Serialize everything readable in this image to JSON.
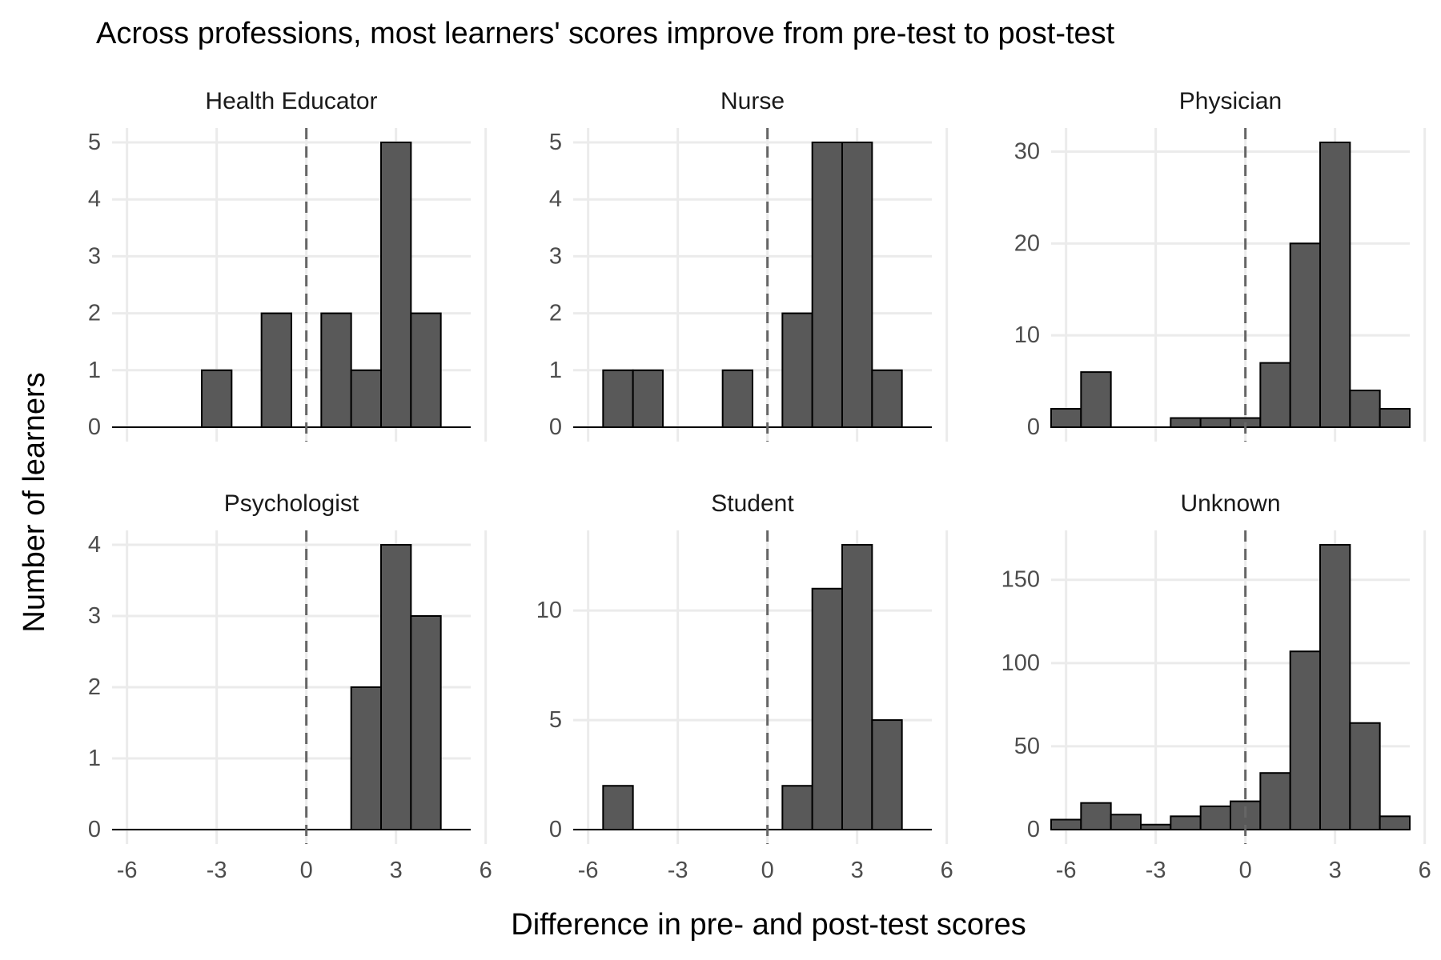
{
  "chart_data": {
    "type": "bar",
    "title": "Across professions, most learners' scores improve from pre-test to post-test",
    "xlabel": "Difference in pre- and post-test scores",
    "ylabel": "Number of learners",
    "xlim": [
      -6.5,
      5.5
    ],
    "bin_width": 1,
    "bin_centers": [
      -6,
      -5,
      -4,
      -3,
      -2,
      -1,
      0,
      1,
      2,
      3,
      4,
      5
    ],
    "x_ticks": [
      -6,
      -3,
      0,
      3,
      6
    ],
    "x_tick_labels": [
      "-6",
      "-3",
      "0",
      "3",
      "6"
    ],
    "reference_line": {
      "x": 0,
      "style": "dashed"
    },
    "grid": true,
    "legend": "none",
    "facets": [
      {
        "name": "Health Educator",
        "values": [
          0,
          0,
          0,
          1,
          0,
          2,
          0,
          2,
          1,
          5,
          2,
          0
        ],
        "ylim": [
          0,
          5
        ],
        "y_ticks": [
          0,
          1,
          2,
          3,
          4,
          5
        ],
        "y_tick_labels": [
          "0",
          "1",
          "2",
          "3",
          "4",
          "5"
        ]
      },
      {
        "name": "Nurse",
        "values": [
          0,
          1,
          1,
          0,
          0,
          1,
          0,
          2,
          5,
          5,
          1,
          0
        ],
        "ylim": [
          0,
          5
        ],
        "y_ticks": [
          0,
          1,
          2,
          3,
          4,
          5
        ],
        "y_tick_labels": [
          "0",
          "1",
          "2",
          "3",
          "4",
          "5"
        ]
      },
      {
        "name": "Physician",
        "values": [
          2,
          6,
          0,
          0,
          1,
          1,
          1,
          7,
          20,
          31,
          4,
          2
        ],
        "ylim": [
          0,
          31
        ],
        "y_ticks": [
          0,
          10,
          20,
          30
        ],
        "y_tick_labels": [
          "0",
          "10",
          "20",
          "30"
        ]
      },
      {
        "name": "Psychologist",
        "values": [
          0,
          0,
          0,
          0,
          0,
          0,
          0,
          0,
          2,
          4,
          3,
          0
        ],
        "ylim": [
          0,
          4
        ],
        "y_ticks": [
          0,
          1,
          2,
          3,
          4
        ],
        "y_tick_labels": [
          "0",
          "1",
          "2",
          "3",
          "4"
        ]
      },
      {
        "name": "Student",
        "values": [
          0,
          2,
          0,
          0,
          0,
          0,
          0,
          2,
          11,
          13,
          5,
          0
        ],
        "ylim": [
          0,
          13
        ],
        "y_ticks": [
          0,
          5,
          10
        ],
        "y_tick_labels": [
          "0",
          "5",
          "10"
        ]
      },
      {
        "name": "Unknown",
        "values": [
          6,
          16,
          9,
          3,
          8,
          14,
          17,
          34,
          107,
          171,
          64,
          8
        ],
        "ylim": [
          0,
          171
        ],
        "y_ticks": [
          0,
          50,
          100,
          150
        ],
        "y_tick_labels": [
          "0",
          "50",
          "100",
          "150"
        ]
      }
    ]
  }
}
